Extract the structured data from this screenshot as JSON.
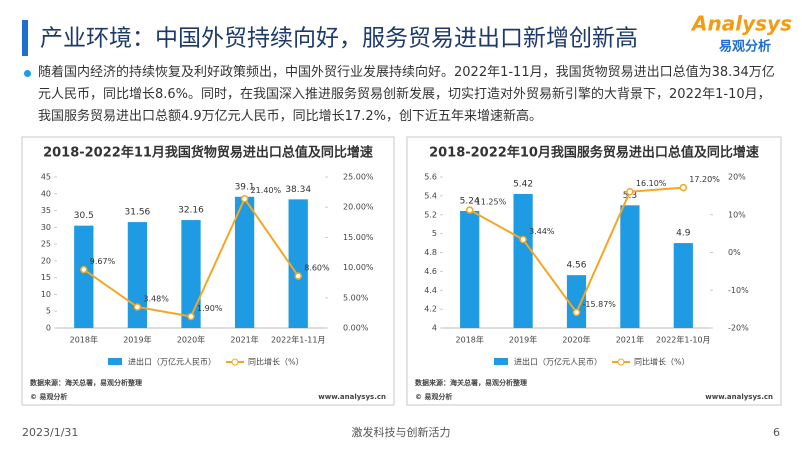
{
  "header": {
    "title": "产业环境：中国外贸持续向好，服务贸易进出口新增创新高",
    "logo_name": "Analysys",
    "logo_cn": "易观分析"
  },
  "body": {
    "paragraph": "随着国内经济的持续恢复及利好政策频出，中国外贸行业发展持续向好。2022年1-11月，我国货物贸易进出口总值为38.34万亿元人民币，同比增长8.6%。同时，在我国深入推进服务贸易创新发展，切实打造对外贸易新引擎的大背景下，2022年1-10月，我国服务贸易进出口总额4.9万亿元人民币，同比增长17.2%，创下近五年来增速新高。"
  },
  "footer": {
    "date": "2023/1/31",
    "slogan": "激发科技与创新活力",
    "page": "6"
  },
  "chart_data": [
    {
      "type": "bar-line",
      "title": "2018-2022年11月我国货物贸易进出口总值及同比增速",
      "categories": [
        "2018年",
        "2019年",
        "2020年",
        "2021年",
        "2022年1-11月"
      ],
      "series": [
        {
          "name": "进出口（万亿元人民币）",
          "type": "bar",
          "color": "#1e9be3",
          "values": [
            30.5,
            31.56,
            32.16,
            39.1,
            38.34
          ]
        },
        {
          "name": "同比增长（%）",
          "type": "line",
          "axis": "y2",
          "color": "#f5a623",
          "values": [
            9.67,
            3.48,
            1.9,
            21.4,
            8.6
          ],
          "value_labels": [
            "9.67%",
            "3.48%",
            "1.90%",
            "21.40%",
            "8.60%"
          ]
        }
      ],
      "ylim": [
        0,
        45
      ],
      "yticks": [
        0,
        5,
        10,
        15,
        20,
        25,
        30,
        35,
        40,
        45
      ],
      "y2lim": [
        0,
        25
      ],
      "y2ticks": [
        {
          "value": 0,
          "label": "0.00%"
        },
        {
          "value": 5,
          "label": "5.00%"
        },
        {
          "value": 10,
          "label": "10.00%"
        },
        {
          "value": 15,
          "label": "15.00%"
        },
        {
          "value": 20,
          "label": "20.00%"
        },
        {
          "value": 25,
          "label": "25.00%"
        }
      ],
      "source": "数据来源：海关总署，易观分析整理",
      "copyright": "© 易观分析",
      "url": "www.analysys.cn"
    },
    {
      "type": "bar-line",
      "title": "2018-2022年10月我国服务贸易进出口总值及同比增速",
      "categories": [
        "2018年",
        "2019年",
        "2020年",
        "2021年",
        "2022年1-10月"
      ],
      "series": [
        {
          "name": "进出口（万亿元人民币）",
          "type": "bar",
          "color": "#1e9be3",
          "values": [
            5.24,
            5.42,
            4.56,
            5.3,
            4.9
          ]
        },
        {
          "name": "同比增长（%）",
          "type": "line",
          "axis": "y2",
          "color": "#f5a623",
          "values": [
            11.25,
            3.44,
            -15.87,
            16.1,
            17.2
          ],
          "value_labels": [
            "11.25%",
            "3.44%",
            "-15.87%",
            "16.10%",
            "17.20%"
          ]
        }
      ],
      "ylim": [
        4,
        5.6
      ],
      "yticks": [
        4,
        4.2,
        4.4,
        4.6,
        4.8,
        5,
        5.2,
        5.4,
        5.6
      ],
      "y2lim": [
        -20,
        20
      ],
      "y2ticks": [
        {
          "value": -20,
          "label": "-20%"
        },
        {
          "value": -10,
          "label": "-10%"
        },
        {
          "value": 0,
          "label": "0%"
        },
        {
          "value": 10,
          "label": "10%"
        },
        {
          "value": 20,
          "label": "20%"
        }
      ],
      "source": "数据来源：海关总署，易观分析整理",
      "copyright": "© 易观分析",
      "url": "www.analysys.cn"
    }
  ]
}
